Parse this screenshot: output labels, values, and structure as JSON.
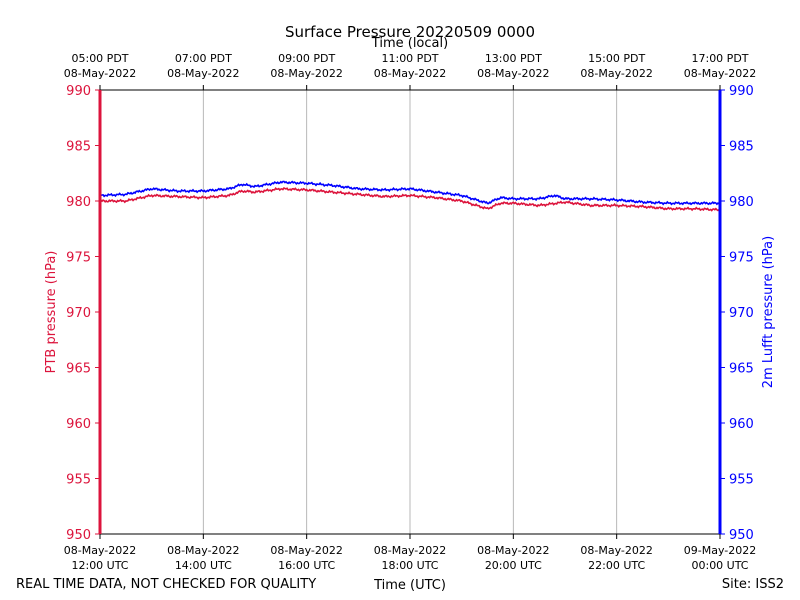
{
  "chart_data": {
    "type": "line",
    "title": "Surface Pressure 20220509 0000",
    "xlabel_top": "Time (local)",
    "xlabel_bottom": "Time (UTC)",
    "ylabel_left": "PTB pressure (hPa)",
    "ylabel_right": "2m Lufft pressure (hPa)",
    "ylim": [
      950,
      990
    ],
    "yticks": [
      950,
      955,
      960,
      965,
      970,
      975,
      980,
      985,
      990
    ],
    "xlim": [
      12,
      24
    ],
    "xticks_hours": [
      12,
      14,
      16,
      18,
      20,
      22,
      24
    ],
    "xtick_labels_bottom": [
      {
        "date": "08-May-2022",
        "time": "12:00 UTC"
      },
      {
        "date": "08-May-2022",
        "time": "14:00 UTC"
      },
      {
        "date": "08-May-2022",
        "time": "16:00 UTC"
      },
      {
        "date": "08-May-2022",
        "time": "18:00 UTC"
      },
      {
        "date": "08-May-2022",
        "time": "20:00 UTC"
      },
      {
        "date": "08-May-2022",
        "time": "22:00 UTC"
      },
      {
        "date": "09-May-2022",
        "time": "00:00 UTC"
      }
    ],
    "xtick_labels_top": [
      {
        "time": "05:00 PDT",
        "date": "08-May-2022"
      },
      {
        "time": "07:00 PDT",
        "date": "08-May-2022"
      },
      {
        "time": "09:00 PDT",
        "date": "08-May-2022"
      },
      {
        "time": "11:00 PDT",
        "date": "08-May-2022"
      },
      {
        "time": "13:00 PDT",
        "date": "08-May-2022"
      },
      {
        "time": "15:00 PDT",
        "date": "08-May-2022"
      },
      {
        "time": "17:00 PDT",
        "date": "08-May-2022"
      }
    ],
    "grid": "vertical",
    "series": [
      {
        "name": "PTB pressure",
        "axis": "left",
        "color": "#dc143c",
        "x": [
          12.0,
          12.5,
          13.0,
          13.5,
          14.0,
          14.5,
          14.75,
          15.0,
          15.5,
          16.0,
          16.5,
          17.0,
          17.5,
          18.0,
          18.5,
          19.0,
          19.5,
          19.75,
          20.0,
          20.5,
          21.0,
          21.5,
          22.0,
          22.5,
          23.0,
          23.5,
          24.0
        ],
        "values": [
          980.0,
          980.0,
          980.5,
          980.4,
          980.3,
          980.5,
          980.9,
          980.8,
          981.1,
          981.0,
          980.8,
          980.6,
          980.4,
          980.5,
          980.3,
          980.0,
          979.3,
          979.8,
          979.8,
          979.6,
          979.9,
          979.6,
          979.6,
          979.5,
          979.3,
          979.3,
          979.2
        ]
      },
      {
        "name": "2m Lufft pressure",
        "axis": "right",
        "color": "#0000ff",
        "x": [
          12.0,
          12.5,
          13.0,
          13.5,
          14.0,
          14.5,
          14.75,
          15.0,
          15.5,
          16.0,
          16.5,
          17.0,
          17.5,
          18.0,
          18.5,
          19.0,
          19.5,
          19.75,
          20.0,
          20.5,
          20.8,
          21.0,
          21.5,
          22.0,
          22.5,
          23.0,
          23.5,
          24.0
        ],
        "values": [
          980.5,
          980.6,
          981.1,
          980.9,
          980.9,
          981.1,
          981.5,
          981.3,
          981.7,
          981.6,
          981.4,
          981.1,
          981.0,
          981.1,
          980.8,
          980.5,
          979.8,
          980.3,
          980.2,
          980.2,
          980.5,
          980.2,
          980.2,
          980.1,
          979.9,
          979.8,
          979.8,
          979.8
        ]
      }
    ]
  },
  "footer": {
    "left_note": "REAL TIME DATA, NOT CHECKED FOR QUALITY",
    "site": "Site: ISS2"
  }
}
